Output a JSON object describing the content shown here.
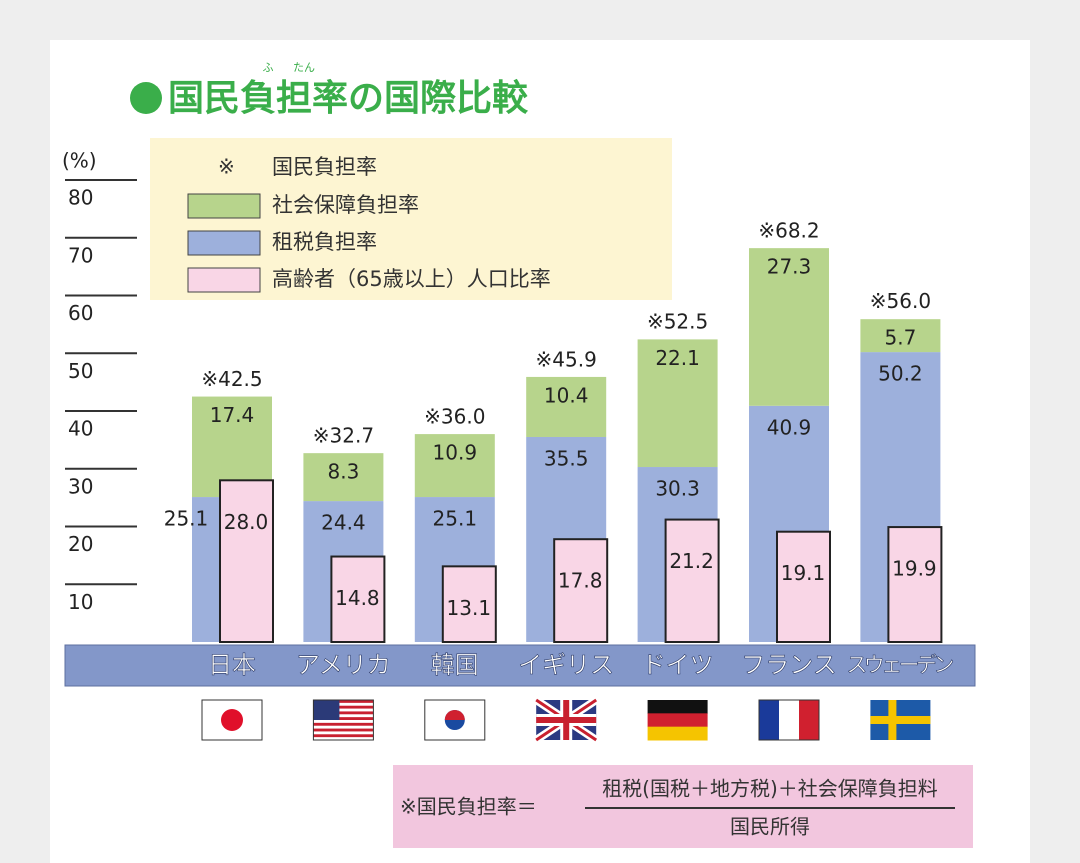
{
  "chart_data": {
    "type": "bar",
    "title": "国民負担率の国際比較",
    "title_ruby": [
      "ふ",
      "たん"
    ],
    "y_unit": "(%)",
    "categories": [
      "日本",
      "アメリカ",
      "韓国",
      "イギリス",
      "ドイツ",
      "フランス",
      "スウェーデン"
    ],
    "series": [
      {
        "name": "国民負担率",
        "marker": "※",
        "role": "total",
        "values": [
          42.5,
          32.7,
          36.0,
          45.9,
          52.5,
          68.2,
          56.0
        ],
        "value_labels": [
          "※42.5",
          "※32.7",
          "※36.0",
          "※45.9",
          "※52.5",
          "※68.2",
          "※56.0"
        ]
      },
      {
        "name": "社会保障負担率",
        "color": "#b7d48c",
        "role": "stack-top",
        "values": [
          17.4,
          8.3,
          10.9,
          10.4,
          22.1,
          27.3,
          5.7
        ]
      },
      {
        "name": "租税負担率",
        "color": "#9db0dc",
        "role": "stack-base",
        "values": [
          25.1,
          24.4,
          25.1,
          35.5,
          30.3,
          40.9,
          50.2
        ]
      },
      {
        "name": "高齢者（65歳以上）人口比率",
        "color": "#f9d6e6",
        "role": "overlay",
        "values": [
          28.0,
          14.8,
          13.1,
          17.8,
          21.2,
          19.1,
          19.9
        ],
        "value_labels": [
          "28.0",
          "14.8",
          "13.1",
          "17.8",
          "21.2",
          "19.1",
          "19.9"
        ]
      }
    ],
    "ylim": [
      0,
      80
    ],
    "yticks": [
      10,
      20,
      30,
      40,
      50,
      60,
      70,
      80
    ],
    "note": {
      "label": "※国民負担率＝",
      "numerator": "租税(国税＋地方税)＋社会保障負担料",
      "denominator": "国民所得"
    }
  }
}
